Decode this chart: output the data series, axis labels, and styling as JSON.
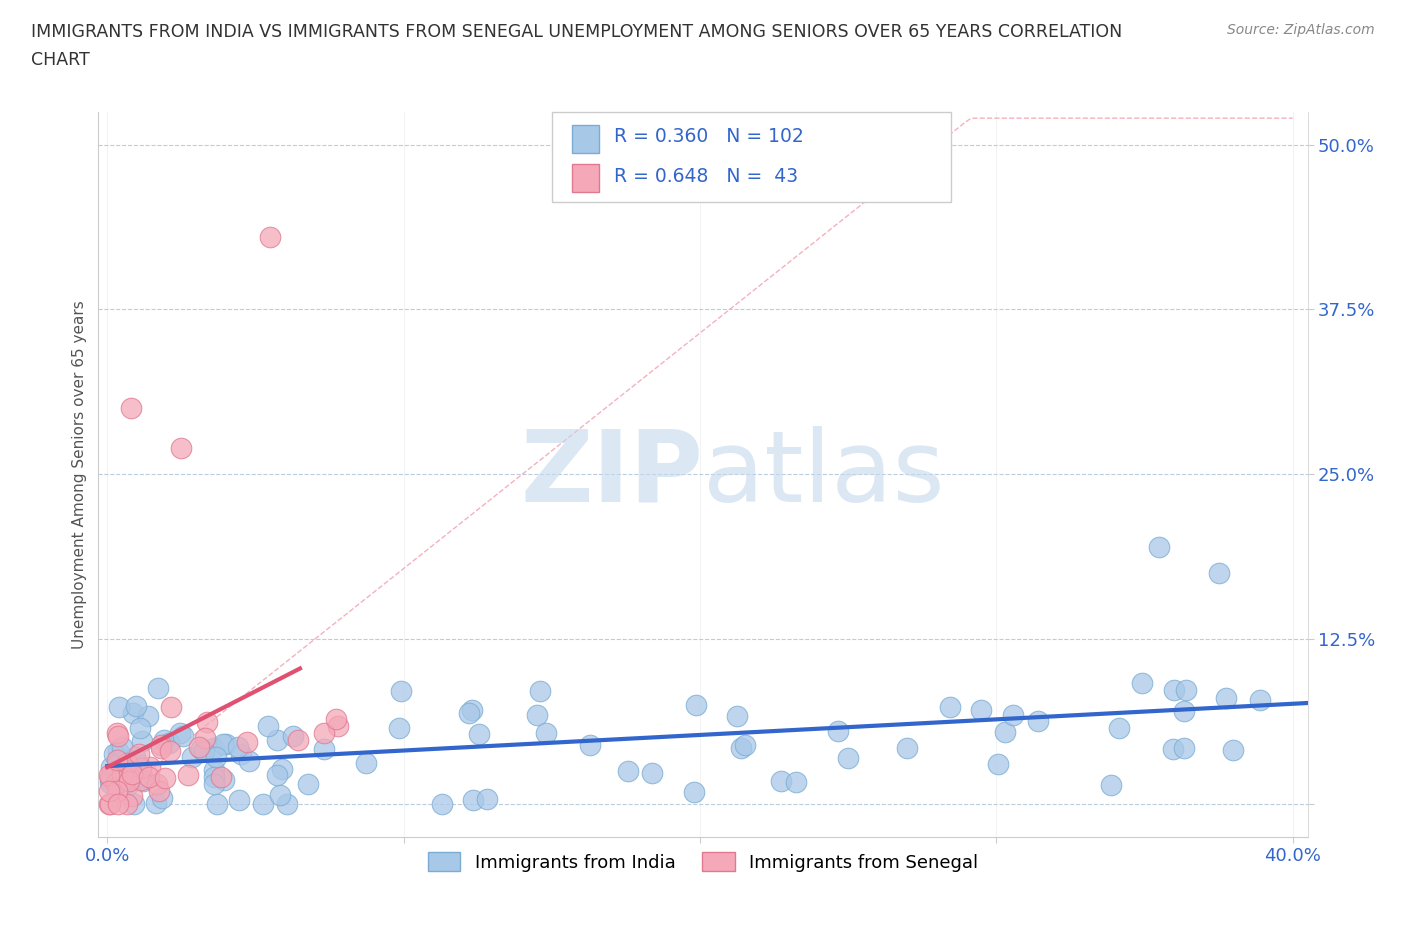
{
  "title_line1": "IMMIGRANTS FROM INDIA VS IMMIGRANTS FROM SENEGAL UNEMPLOYMENT AMONG SENIORS OVER 65 YEARS CORRELATION",
  "title_line2": "CHART",
  "source": "Source: ZipAtlas.com",
  "ylabel": "Unemployment Among Seniors over 65 years",
  "xlim": [
    -0.003,
    0.405
  ],
  "ylim": [
    -0.025,
    0.525
  ],
  "india_color": "#A8C8E8",
  "india_edge": "#7AACD4",
  "senegal_color": "#F4A8B8",
  "senegal_edge": "#E07890",
  "trend_india_color": "#3366CC",
  "trend_senegal_color": "#E05070",
  "trend_diag_color": "#F4A8B8",
  "R_india": 0.36,
  "N_india": 102,
  "R_senegal": 0.648,
  "N_senegal": 43,
  "legend_india": "Immigrants from India",
  "legend_senegal": "Immigrants from Senegal",
  "watermark": "ZIPatlas",
  "watermark_color": "#C5D8EE",
  "title_color": "#333333",
  "label_color": "#3366CC",
  "tick_color": "#3366CC"
}
